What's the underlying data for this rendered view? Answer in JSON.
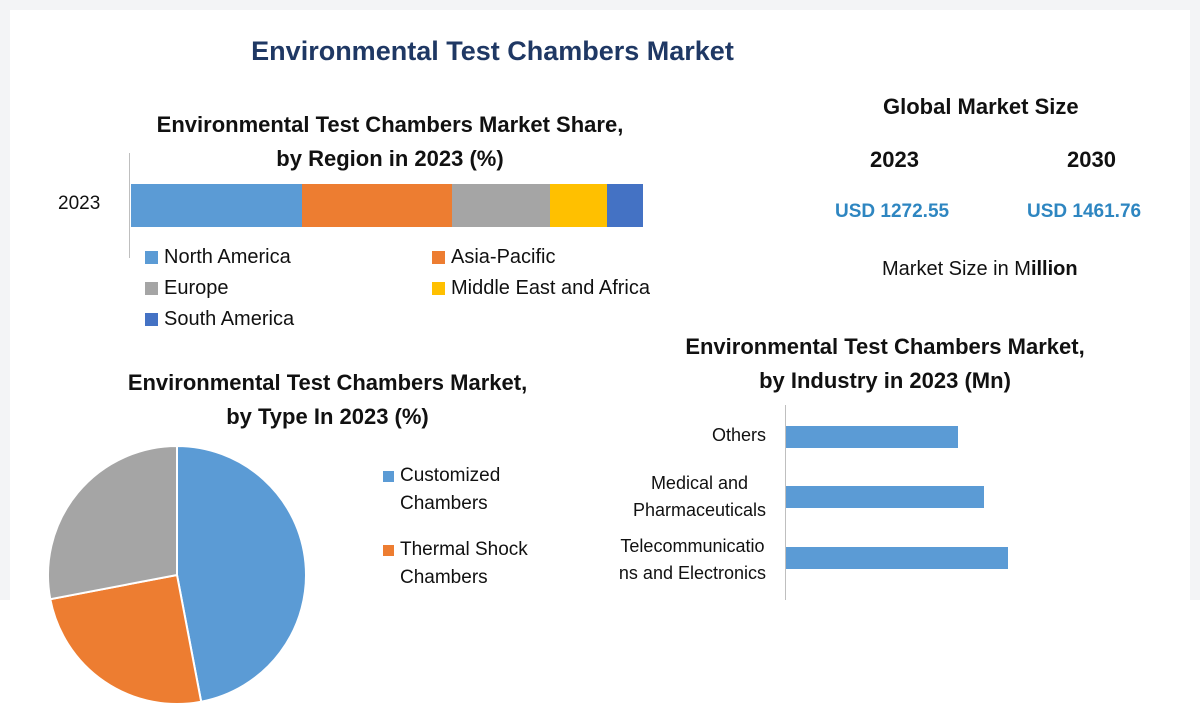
{
  "title": "Environmental Test Chambers Market",
  "region_chart_title_line1": "Environmental Test Chambers Market Share,",
  "region_chart_title_line2": "by Region in 2023 (%)",
  "type_chart_title_line1": "Environmental Test Chambers Market,",
  "type_chart_title_line2": "by Type In 2023 (%)",
  "industry_chart_title_line1": "Environmental Test Chambers Market,",
  "industry_chart_title_line2": "by Industry in 2023 (Mn)",
  "global_market": {
    "title": "Global Market Size",
    "year_a": "2023",
    "year_b": "2030",
    "value_a": "USD 1272.55",
    "value_b": "USD 1461.76",
    "unit_prefix": "Market Size in M",
    "unit_suffix": "illion"
  },
  "chart_data": [
    {
      "type": "bar",
      "orientation": "horizontal-stacked",
      "categories": [
        "2023"
      ],
      "series": [
        {
          "name": "North America",
          "values": [
            33
          ],
          "color": "#5b9bd5"
        },
        {
          "name": "Asia-Pacific",
          "values": [
            29
          ],
          "color": "#ed7d31"
        },
        {
          "name": "Europe",
          "values": [
            19
          ],
          "color": "#a5a5a5"
        },
        {
          "name": "Middle East and Africa",
          "values": [
            11
          ],
          "color": "#ffc000"
        },
        {
          "name": "South America",
          "values": [
            7
          ],
          "color": "#4472c4"
        }
      ],
      "xlim": [
        0,
        100
      ],
      "legend_position": "bottom"
    },
    {
      "type": "pie",
      "slices": [
        {
          "name": "Customized Chambers",
          "value": 47,
          "color": "#5b9bd5"
        },
        {
          "name": "Thermal Shock Chambers",
          "value": 25,
          "color": "#ed7d31"
        },
        {
          "name": "",
          "value": 28,
          "color": "#a5a5a5"
        }
      ],
      "legend": [
        {
          "line1": "Customized",
          "line2": "Chambers",
          "color": "#5b9bd5"
        },
        {
          "line1": "Thermal Shock",
          "line2": "Chambers",
          "color": "#ed7d31"
        }
      ],
      "legend_position": "right"
    },
    {
      "type": "bar",
      "orientation": "horizontal",
      "categories": [
        "Others",
        "Medical and\nPharmaceuticals",
        "Telecommunicatio\nns and Electronics"
      ],
      "values": [
        172,
        198,
        222
      ],
      "color": "#5b9bd5",
      "xlim": [
        0,
        260
      ],
      "grid": false
    }
  ]
}
